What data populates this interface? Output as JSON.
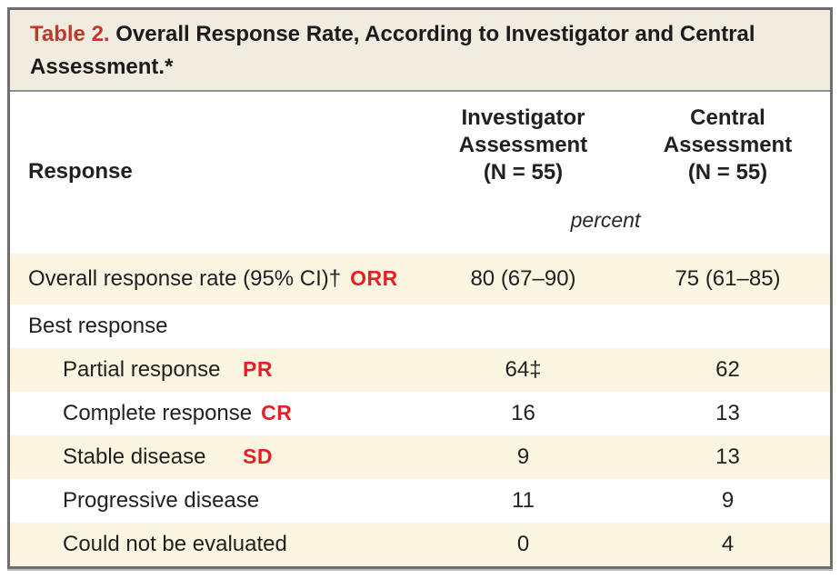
{
  "title": {
    "label": "Table 2.",
    "text": "Overall Response Rate, According to Investigator and Central Assessment.*"
  },
  "header": {
    "row_label": "Response",
    "columns": [
      {
        "text": "Investigator\nAssessment\n(N = 55)"
      },
      {
        "text": "Central\nAssessment\n(N = 55)"
      }
    ],
    "unit_label": "percent"
  },
  "rows": [
    {
      "label": "Overall response rate (95% CI)†",
      "annotation": "ORR",
      "investigator": "80 (67–90)",
      "central": "75 (61–85)"
    },
    {
      "label": "Best response",
      "annotation": "",
      "investigator": "",
      "central": ""
    },
    {
      "label": "Partial response",
      "annotation": "PR",
      "investigator": "64‡",
      "central": "62"
    },
    {
      "label": "Complete response",
      "annotation": "CR",
      "investigator": "16",
      "central": "13"
    },
    {
      "label": "Stable disease",
      "annotation": "SD",
      "investigator": "9",
      "central": "13"
    },
    {
      "label": "Progressive disease",
      "annotation": "",
      "investigator": "11",
      "central": "9"
    },
    {
      "label": "Could not be evaluated",
      "annotation": "",
      "investigator": "0",
      "central": "4"
    }
  ],
  "colors": {
    "title_red": "#c0392b",
    "annotation_red": "#e51f26",
    "shaded_row": "#fcf5e1",
    "title_background": "#f1ece0",
    "border_gray": "#6e6e6e"
  }
}
